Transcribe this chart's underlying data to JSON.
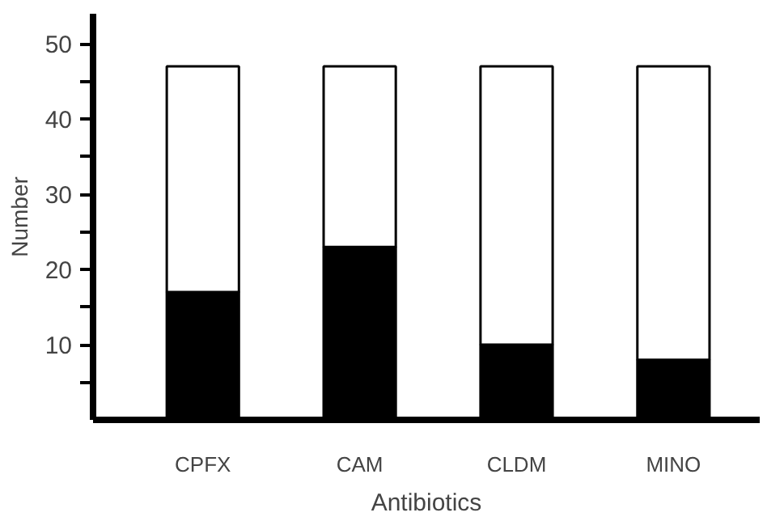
{
  "chart_data": {
    "type": "bar",
    "stacked": true,
    "xlabel": "Antibiotics",
    "ylabel": "Number",
    "categories": [
      "CPFX",
      "CAM",
      "CLDM",
      "MINO"
    ],
    "series": [
      {
        "color": "#000000",
        "values": [
          17,
          23,
          10,
          8
        ]
      },
      {
        "color": "#ffffff",
        "values": [
          30,
          24,
          37,
          39
        ]
      }
    ],
    "ylim": [
      0,
      54
    ],
    "yticks": [
      {
        "value": 5,
        "label": null
      },
      10,
      {
        "value": 15,
        "label": null
      },
      20,
      {
        "value": 25,
        "label": null
      },
      30,
      {
        "value": 35,
        "label": null
      },
      40,
      {
        "value": 45,
        "label": null
      },
      50
    ],
    "grid": false
  }
}
